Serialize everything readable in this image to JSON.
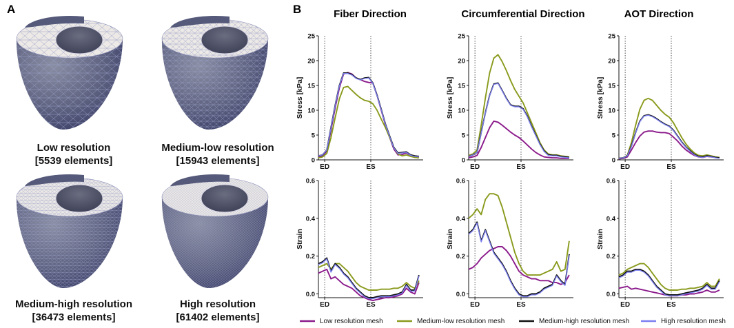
{
  "panel_a": {
    "label": "A",
    "meshes": [
      {
        "name": "Low resolution",
        "elements": "[5539 elements]"
      },
      {
        "name": "Medium-low resolution",
        "elements": "[15943 elements]"
      },
      {
        "name": "Medium-high resolution",
        "elements": "[36473 elements]"
      },
      {
        "name": "High resolution",
        "elements": "[61402 elements]"
      }
    ]
  },
  "panel_b": {
    "label": "B"
  },
  "colors": {
    "low": "#8b1a8b",
    "medlow": "#8a9a1c",
    "medhigh": "#111111",
    "high": "#7b7ff0"
  },
  "chart_data": [
    {
      "type": "line",
      "column": "Fiber Direction",
      "ylabel": "Stress [kPa]",
      "ylim": [
        0,
        25
      ],
      "yticks": [
        "0",
        "5",
        "10",
        "15",
        "20",
        "25"
      ],
      "events": {
        "ED": 0.06,
        "ES": 0.5
      },
      "x": [
        0,
        0.04,
        0.08,
        0.12,
        0.16,
        0.2,
        0.24,
        0.28,
        0.32,
        0.36,
        0.4,
        0.44,
        0.48,
        0.52,
        0.56,
        0.6,
        0.64,
        0.68,
        0.72,
        0.76,
        0.8,
        0.84,
        0.88,
        0.92,
        0.96
      ],
      "series": [
        {
          "name": "Low resolution mesh",
          "values": [
            0.6,
            0.8,
            1.8,
            6,
            10.5,
            14.5,
            17.3,
            17.6,
            17.3,
            16.5,
            16.2,
            15.8,
            15.6,
            15.5,
            13,
            10,
            7,
            4.5,
            2.2,
            1.0,
            1.1,
            1.4,
            0.8,
            0.6,
            0.5
          ]
        },
        {
          "name": "Medium-low resolution mesh",
          "values": [
            0.4,
            0.6,
            1.3,
            4.5,
            8.5,
            12.3,
            14.6,
            14.8,
            14,
            13.2,
            12.5,
            12,
            11.8,
            11.3,
            10,
            8.2,
            6.5,
            4.5,
            2.5,
            1.2,
            0.8,
            1.0,
            0.7,
            0.5,
            0.4
          ]
        },
        {
          "name": "Medium-high resolution mesh",
          "values": [
            0.8,
            1.0,
            2.0,
            6.5,
            11,
            15,
            17.5,
            17.5,
            17.2,
            16.5,
            16.2,
            16.5,
            16.6,
            15.5,
            13,
            10.2,
            7.2,
            4.8,
            2.5,
            1.4,
            1.5,
            1.6,
            1.0,
            0.8,
            0.7
          ]
        },
        {
          "name": "High resolution mesh",
          "values": [
            0.8,
            1.0,
            2.0,
            6.4,
            10.9,
            14.9,
            17.4,
            17.4,
            17.1,
            16.4,
            16.1,
            16.4,
            16.5,
            15.4,
            12.9,
            10.1,
            7.1,
            4.7,
            2.4,
            1.3,
            1.4,
            1.5,
            0.9,
            0.7,
            0.6
          ]
        }
      ]
    },
    {
      "type": "line",
      "column": "Circumferential Direction",
      "ylabel": "Stress [kPa]",
      "ylim": [
        0,
        25
      ],
      "yticks": [
        "0",
        "5",
        "10",
        "15",
        "20",
        "25"
      ],
      "events": {
        "ED": 0.06,
        "ES": 0.5
      },
      "x": [
        0,
        0.04,
        0.08,
        0.12,
        0.16,
        0.2,
        0.24,
        0.28,
        0.32,
        0.36,
        0.4,
        0.44,
        0.48,
        0.52,
        0.56,
        0.6,
        0.64,
        0.68,
        0.72,
        0.76,
        0.8,
        0.84,
        0.88,
        0.92,
        0.96
      ],
      "series": [
        {
          "name": "Low resolution mesh",
          "values": [
            0.4,
            0.6,
            0.9,
            2.5,
            4.5,
            6.5,
            7.8,
            7.6,
            7,
            6.3,
            5.6,
            5,
            4.5,
            3.8,
            3,
            2.2,
            1.5,
            1,
            0.6,
            0.5,
            0.4,
            0.4,
            0.3,
            0.3,
            0.3
          ]
        },
        {
          "name": "Medium-low resolution mesh",
          "values": [
            0.9,
            1.2,
            2,
            7,
            12.5,
            17.5,
            20.5,
            21.2,
            19.8,
            18,
            16,
            14.2,
            12.8,
            11.5,
            9.5,
            7.5,
            5.5,
            3.5,
            2,
            1.2,
            1,
            1,
            0.8,
            0.7,
            0.6
          ]
        },
        {
          "name": "Medium-high resolution mesh",
          "values": [
            0.7,
            1,
            1.5,
            5.5,
            9.5,
            13,
            15.3,
            15.5,
            14,
            12.4,
            11.1,
            10.8,
            10.8,
            10.3,
            8.8,
            6.8,
            5,
            3.2,
            1.8,
            1.0,
            0.9,
            0.9,
            0.7,
            0.6,
            0.5
          ]
        },
        {
          "name": "High resolution mesh",
          "values": [
            0.7,
            1,
            1.5,
            5.4,
            9.4,
            12.9,
            15.2,
            15.4,
            13.9,
            12.3,
            11,
            10.7,
            10.7,
            10.2,
            8.7,
            6.7,
            4.9,
            3.1,
            1.7,
            0.9,
            0.8,
            0.8,
            0.6,
            0.5,
            0.4
          ]
        }
      ]
    },
    {
      "type": "line",
      "column": "AOT Direction",
      "ylabel": "Stress [kPa]",
      "ylim": [
        0,
        25
      ],
      "yticks": [
        "0",
        "5",
        "10",
        "15",
        "20",
        "25"
      ],
      "events": {
        "ED": 0.06,
        "ES": 0.5
      },
      "x": [
        0,
        0.04,
        0.08,
        0.12,
        0.16,
        0.2,
        0.24,
        0.28,
        0.32,
        0.36,
        0.4,
        0.44,
        0.48,
        0.52,
        0.56,
        0.6,
        0.64,
        0.68,
        0.72,
        0.76,
        0.8,
        0.84,
        0.88,
        0.92,
        0.96
      ],
      "series": [
        {
          "name": "Low resolution mesh",
          "values": [
            0.2,
            0.3,
            0.6,
            2,
            3.5,
            4.8,
            5.6,
            5.8,
            5.8,
            5.6,
            5.5,
            5.5,
            5.3,
            4.6,
            3.8,
            2.8,
            2,
            1.4,
            0.9,
            0.6,
            0.5,
            0.7,
            0.6,
            0.5,
            0.4
          ]
        },
        {
          "name": "Medium-low resolution mesh",
          "values": [
            0.3,
            0.4,
            0.9,
            3.5,
            7,
            10.2,
            12,
            12.4,
            12,
            11,
            10,
            9.2,
            8.6,
            7.5,
            6,
            4.5,
            3.2,
            2.2,
            1.4,
            0.9,
            0.8,
            1,
            0.8,
            0.6,
            0.5
          ]
        },
        {
          "name": "Medium-high resolution mesh",
          "values": [
            0.3,
            0.4,
            0.8,
            2.8,
            5.5,
            7.8,
            8.9,
            9.1,
            8.8,
            8.3,
            7.7,
            7.2,
            6.8,
            6,
            4.8,
            3.6,
            2.6,
            1.8,
            1.1,
            0.7,
            0.6,
            0.8,
            0.7,
            0.5,
            0.4
          ]
        },
        {
          "name": "High resolution mesh",
          "values": [
            0.3,
            0.4,
            0.8,
            2.7,
            5.4,
            7.7,
            8.8,
            9,
            8.7,
            8.2,
            7.6,
            7.1,
            6.7,
            5.9,
            4.7,
            3.5,
            2.5,
            1.7,
            1.0,
            0.6,
            0.5,
            0.7,
            0.6,
            0.4,
            0.3
          ]
        }
      ]
    },
    {
      "type": "line",
      "column": "Fiber Direction",
      "ylabel": "Strain",
      "ylim": [
        -0.02,
        0.6
      ],
      "yticks": [
        "0.0",
        "0.2",
        "0.4",
        "0.6"
      ],
      "events": {
        "ED": 0.06,
        "ES": 0.5
      },
      "x": [
        0,
        0.04,
        0.08,
        0.12,
        0.16,
        0.2,
        0.24,
        0.28,
        0.32,
        0.36,
        0.4,
        0.44,
        0.48,
        0.52,
        0.56,
        0.6,
        0.64,
        0.68,
        0.72,
        0.76,
        0.8,
        0.84,
        0.88,
        0.92,
        0.96
      ],
      "series": [
        {
          "name": "Low resolution mesh",
          "values": [
            0.11,
            0.12,
            0.13,
            0.08,
            0.09,
            0.07,
            0.05,
            0.04,
            0.03,
            0.01,
            -0.01,
            -0.02,
            -0.03,
            -0.035,
            -0.03,
            -0.025,
            -0.02,
            -0.02,
            -0.015,
            -0.01,
            0.0,
            0.03,
            0.01,
            0.0,
            0.06
          ]
        },
        {
          "name": "Medium-low resolution mesh",
          "values": [
            0.14,
            0.15,
            0.16,
            0.13,
            0.16,
            0.16,
            0.14,
            0.12,
            0.09,
            0.06,
            0.04,
            0.03,
            0.02,
            0.02,
            0.02,
            0.025,
            0.025,
            0.025,
            0.03,
            0.03,
            0.04,
            0.06,
            0.04,
            0.03,
            0.07
          ]
        },
        {
          "name": "Medium-high resolution mesh",
          "values": [
            0.16,
            0.17,
            0.19,
            0.12,
            0.16,
            0.14,
            0.11,
            0.09,
            0.06,
            0.03,
            0.01,
            -0.01,
            -0.02,
            -0.02,
            -0.015,
            -0.01,
            -0.01,
            -0.01,
            -0.005,
            0.0,
            0.01,
            0.05,
            0.02,
            0.02,
            0.1
          ]
        },
        {
          "name": "High resolution mesh",
          "values": [
            0.155,
            0.165,
            0.185,
            0.115,
            0.155,
            0.135,
            0.105,
            0.085,
            0.055,
            0.025,
            0.005,
            -0.015,
            -0.025,
            -0.025,
            -0.02,
            -0.015,
            -0.015,
            -0.015,
            -0.01,
            -0.005,
            0.005,
            0.045,
            0.015,
            0.015,
            0.095
          ]
        }
      ]
    },
    {
      "type": "line",
      "column": "Circumferential Direction",
      "ylabel": "Strain",
      "ylim": [
        -0.02,
        0.6
      ],
      "yticks": [
        "0.0",
        "0.2",
        "0.4",
        "0.6"
      ],
      "events": {
        "ED": 0.06,
        "ES": 0.5
      },
      "x": [
        0,
        0.04,
        0.08,
        0.12,
        0.16,
        0.2,
        0.24,
        0.28,
        0.32,
        0.36,
        0.4,
        0.44,
        0.48,
        0.52,
        0.56,
        0.6,
        0.64,
        0.68,
        0.72,
        0.76,
        0.8,
        0.84,
        0.88,
        0.92,
        0.96
      ],
      "series": [
        {
          "name": "Low resolution mesh",
          "values": [
            0.13,
            0.14,
            0.16,
            0.19,
            0.21,
            0.23,
            0.24,
            0.25,
            0.25,
            0.23,
            0.2,
            0.16,
            0.12,
            0.1,
            0.09,
            0.08,
            0.08,
            0.07,
            0.07,
            0.07,
            0.06,
            0.06,
            0.05,
            0.06,
            0.1
          ]
        },
        {
          "name": "Medium-low resolution mesh",
          "values": [
            0.4,
            0.42,
            0.45,
            0.42,
            0.5,
            0.53,
            0.53,
            0.52,
            0.46,
            0.38,
            0.3,
            0.22,
            0.16,
            0.12,
            0.1,
            0.1,
            0.1,
            0.1,
            0.11,
            0.12,
            0.13,
            0.17,
            0.12,
            0.13,
            0.28
          ]
        },
        {
          "name": "Medium-high resolution mesh",
          "values": [
            0.32,
            0.34,
            0.38,
            0.28,
            0.34,
            0.28,
            0.22,
            0.19,
            0.16,
            0.12,
            0.07,
            0.03,
            0.0,
            -0.01,
            -0.01,
            0.0,
            0.0,
            0.01,
            0.03,
            0.04,
            0.05,
            0.1,
            0.07,
            0.05,
            0.21
          ]
        },
        {
          "name": "High resolution mesh",
          "values": [
            0.315,
            0.335,
            0.375,
            0.275,
            0.335,
            0.275,
            0.215,
            0.185,
            0.155,
            0.115,
            0.065,
            0.025,
            -0.005,
            -0.015,
            -0.015,
            -0.005,
            -0.005,
            0.005,
            0.025,
            0.035,
            0.045,
            0.095,
            0.065,
            0.045,
            0.205
          ]
        }
      ]
    },
    {
      "type": "line",
      "column": "AOT Direction",
      "ylabel": "Strain",
      "ylim": [
        -0.02,
        0.6
      ],
      "yticks": [
        "0.0",
        "0.2",
        "0.4",
        "0.6"
      ],
      "events": {
        "ED": 0.06,
        "ES": 0.5
      },
      "x": [
        0,
        0.04,
        0.08,
        0.12,
        0.16,
        0.2,
        0.24,
        0.28,
        0.32,
        0.36,
        0.4,
        0.44,
        0.48,
        0.52,
        0.56,
        0.6,
        0.64,
        0.68,
        0.72,
        0.76,
        0.8,
        0.84,
        0.88,
        0.92,
        0.96
      ],
      "series": [
        {
          "name": "Low resolution mesh",
          "values": [
            0.03,
            0.035,
            0.04,
            0.025,
            0.03,
            0.025,
            0.02,
            0.015,
            0.01,
            0.005,
            0.0,
            -0.005,
            -0.01,
            -0.01,
            -0.01,
            -0.005,
            -0.005,
            0.0,
            0.0,
            0.005,
            0.01,
            0.02,
            0.01,
            0.01,
            0.02
          ]
        },
        {
          "name": "Medium-low resolution mesh",
          "values": [
            0.1,
            0.11,
            0.13,
            0.14,
            0.15,
            0.16,
            0.16,
            0.14,
            0.11,
            0.08,
            0.05,
            0.03,
            0.02,
            0.02,
            0.02,
            0.025,
            0.025,
            0.03,
            0.03,
            0.035,
            0.04,
            0.06,
            0.04,
            0.04,
            0.08
          ]
        },
        {
          "name": "Medium-high resolution mesh",
          "values": [
            0.09,
            0.1,
            0.12,
            0.12,
            0.13,
            0.13,
            0.12,
            0.1,
            0.07,
            0.04,
            0.02,
            0.0,
            -0.005,
            -0.005,
            -0.005,
            0.0,
            0.005,
            0.01,
            0.015,
            0.02,
            0.03,
            0.05,
            0.03,
            0.03,
            0.07
          ]
        },
        {
          "name": "High resolution mesh",
          "values": [
            0.085,
            0.095,
            0.115,
            0.115,
            0.125,
            0.125,
            0.115,
            0.095,
            0.065,
            0.035,
            0.015,
            -0.005,
            -0.01,
            -0.01,
            -0.01,
            -0.005,
            0.0,
            0.005,
            0.01,
            0.015,
            0.025,
            0.045,
            0.025,
            0.025,
            0.065
          ]
        }
      ]
    }
  ],
  "legend": [
    {
      "key": "low",
      "label": "Low resolution mesh"
    },
    {
      "key": "medlow",
      "label": "Medium-low resolution mesh"
    },
    {
      "key": "medhigh",
      "label": "Medium-high resolution mesh"
    },
    {
      "key": "high",
      "label": "High resolution mesh"
    }
  ]
}
